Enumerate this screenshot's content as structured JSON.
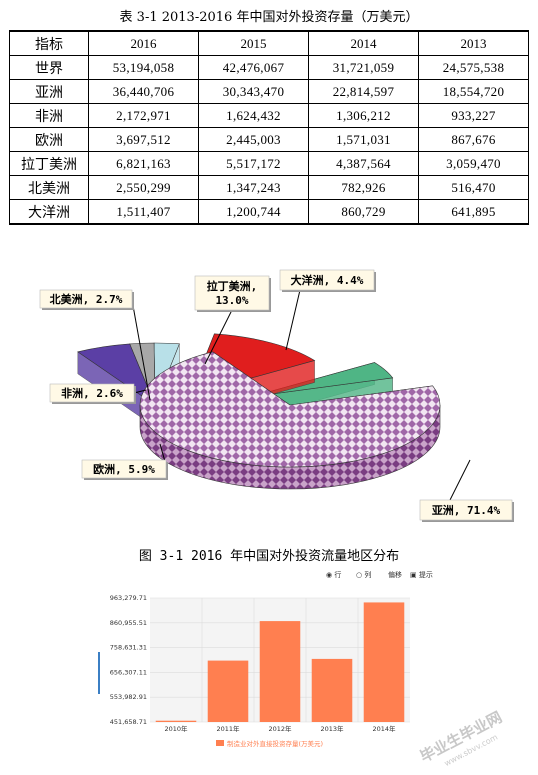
{
  "table": {
    "title": "表 3-1 2013-2016 年中国对外投资存量（万美元）",
    "headers": [
      "指标",
      "2016",
      "2015",
      "2014",
      "2013"
    ],
    "rows": [
      [
        "世界",
        "53,194,058",
        "42,476,067",
        "31,721,059",
        "24,575,538"
      ],
      [
        "亚洲",
        "36,440,706",
        "30,343,470",
        "22,814,597",
        "18,554,720"
      ],
      [
        "非洲",
        "2,172,971",
        "1,624,432",
        "1,306,212",
        "933,227"
      ],
      [
        "欧洲",
        "3,697,512",
        "2,445,003",
        "1,571,031",
        "867,676"
      ],
      [
        "拉丁美洲",
        "6,821,163",
        "5,517,172",
        "4,387,564",
        "3,059,470"
      ],
      [
        "北美洲",
        "2,550,299",
        "1,347,243",
        "782,926",
        "516,470"
      ],
      [
        "大洋洲",
        "1,511,407",
        "1,200,744",
        "860,729",
        "641,895"
      ]
    ]
  },
  "pie": {
    "caption": "图 3-1 2016 年中国对外投资流量地区分布",
    "labels": {
      "asia": "亚洲, 71.4%",
      "latam_1": "拉丁美洲,",
      "latam_2": "13.0%",
      "oceania": "大洋洲, 4.4%",
      "northamerica": "北美洲, 2.7%",
      "africa": "非洲, 2.6%",
      "europe": "欧洲, 5.9%"
    },
    "colors": {
      "asia": "#d9b3d9",
      "latam": "#e01e1e",
      "oceania": "#4fb585",
      "northamerica": "#b8e0e8",
      "africa": "#a8a8a8",
      "europe": "#5b3fa5"
    }
  },
  "chart_data": [
    {
      "type": "pie",
      "title": "图 3-1 2016 年中国对外投资流量地区分布",
      "categories": [
        "亚洲",
        "拉丁美洲",
        "欧洲",
        "大洋洲",
        "北美洲",
        "非洲"
      ],
      "values": [
        71.4,
        13.0,
        5.9,
        4.4,
        2.7,
        2.6
      ]
    },
    {
      "type": "bar",
      "categories": [
        "2010年",
        "2011年",
        "2012年",
        "2013年",
        "2014年"
      ],
      "series": [
        {
          "name": "制造业对外直接投资存量(万美元)",
          "values": [
            457000,
            705000,
            868000,
            712000,
            945000
          ]
        }
      ],
      "ylim": [
        451658.71,
        963279.71
      ],
      "yticks": [
        "963,279.71",
        "860,955.51",
        "758,631.31",
        "656,307.11",
        "553,982.91",
        "451,658.71"
      ],
      "grid": true,
      "legend": "bottom",
      "color": "#ff7f50"
    }
  ],
  "bar_controls": {
    "row_label": "行",
    "col_label": "列",
    "settings_label": "偏移",
    "hint_label": "提示"
  },
  "watermark": {
    "line1": "毕业生毕业网",
    "line2": "www.sbvv.com"
  }
}
